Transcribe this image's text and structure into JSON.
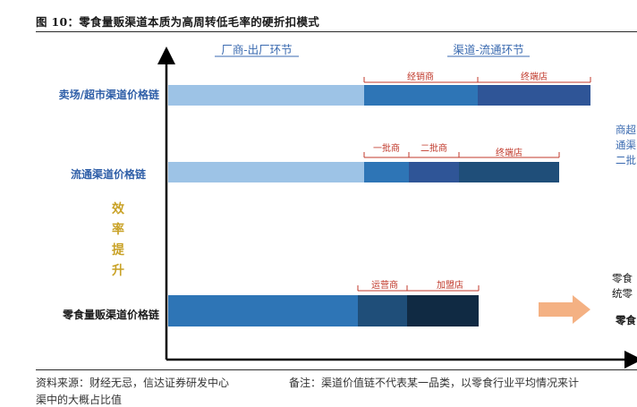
{
  "title": "图 10：零食量贩渠道本质为高周转低毛率的硬折扣模式",
  "headers": {
    "manufacturer": "厂商-出厂环节",
    "channel": "渠道-流通环节"
  },
  "efficiency_label": [
    "效",
    "率",
    "提",
    "升"
  ],
  "chains": {
    "supermarket": {
      "label": "卖场/超市渠道价格链",
      "seg1": "经销商",
      "seg2": "终端店"
    },
    "distribution": {
      "label": "流通渠道价格链",
      "seg1": "一批商",
      "seg2": "二批商",
      "seg3": "终端店"
    },
    "snack": {
      "label": "零食量贩渠道价格链",
      "seg1": "运营商",
      "seg2": "加盟店"
    }
  },
  "side_notes": {
    "top": [
      "商超",
      "通渠",
      "二批"
    ],
    "bottom": [
      "零食",
      "统零",
      "零食"
    ]
  },
  "colors": {
    "manufacturer": "#9dc3e6",
    "mid": "#2e75b6",
    "deep": "#2f5597",
    "darker": "#1f4e79",
    "darkest": "#102a43",
    "arrow": "#f4b183"
  },
  "footer": {
    "source": "资料来源：财经无忌，信达证券研发中心",
    "note": "备注：渠道价值链不代表某一品类，以零食行业平均情况来计",
    "note_cont": "渠中的大概占比值"
  }
}
